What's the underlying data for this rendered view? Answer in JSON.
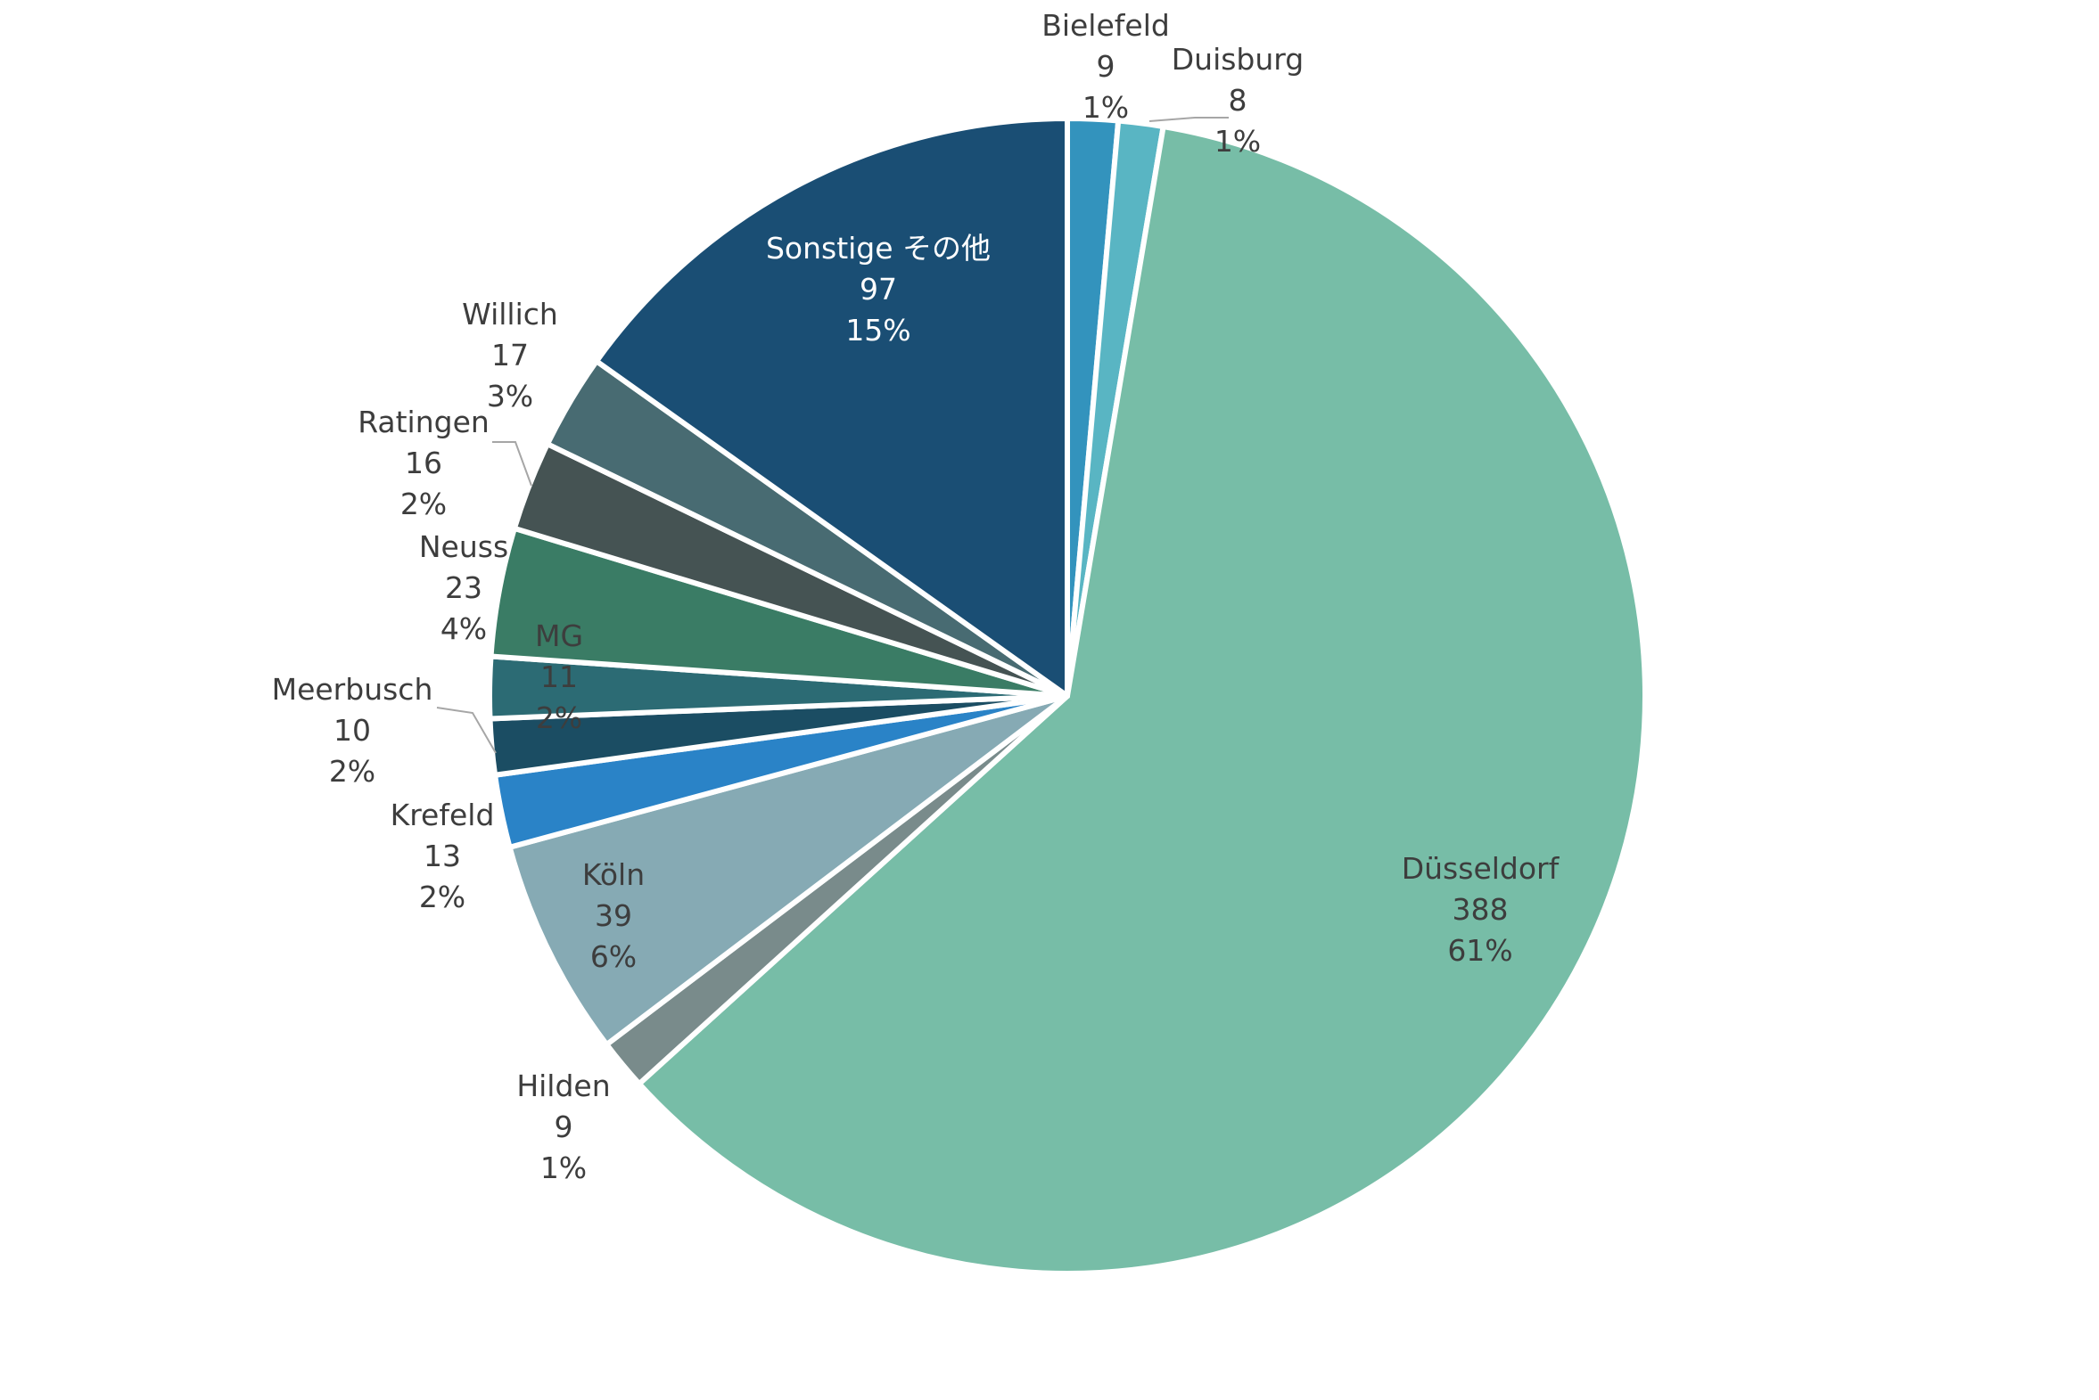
{
  "colors": {
    "background": "#ffffff",
    "slice_border": "#ffffff",
    "label_dark": "#3d3d3d",
    "label_light": "#ffffff",
    "leader": "#a6a6a6"
  },
  "chart_data": {
    "type": "pie",
    "title": "",
    "start_angle_deg": 0,
    "direction": "clockwise",
    "slices": [
      {
        "label": "Bielefeld",
        "value": 9,
        "percent": "1%",
        "color": "#3393bd"
      },
      {
        "label": "Duisburg",
        "value": 8,
        "percent": "1%",
        "color": "#59b5c3"
      },
      {
        "label": "Düsseldorf",
        "value": 388,
        "percent": "61%",
        "color": "#77bda7"
      },
      {
        "label": "Hilden",
        "value": 9,
        "percent": "1%",
        "color": "#798b8b"
      },
      {
        "label": "Köln",
        "value": 39,
        "percent": "6%",
        "color": "#86aab4"
      },
      {
        "label": "Krefeld",
        "value": 13,
        "percent": "2%",
        "color": "#2a83c7"
      },
      {
        "label": "Meerbusch",
        "value": 10,
        "percent": "2%",
        "color": "#1b4d63"
      },
      {
        "label": "MG",
        "value": 11,
        "percent": "2%",
        "color": "#2c6b74"
      },
      {
        "label": "Neuss",
        "value": 23,
        "percent": "4%",
        "color": "#3a7c65"
      },
      {
        "label": "Ratingen",
        "value": 16,
        "percent": "2%",
        "color": "#455353"
      },
      {
        "label": "Willich",
        "value": 17,
        "percent": "3%",
        "color": "#486b72"
      },
      {
        "label": "Sonstige その他",
        "value": 97,
        "percent": "15%",
        "color": "#1a4e74"
      }
    ]
  }
}
